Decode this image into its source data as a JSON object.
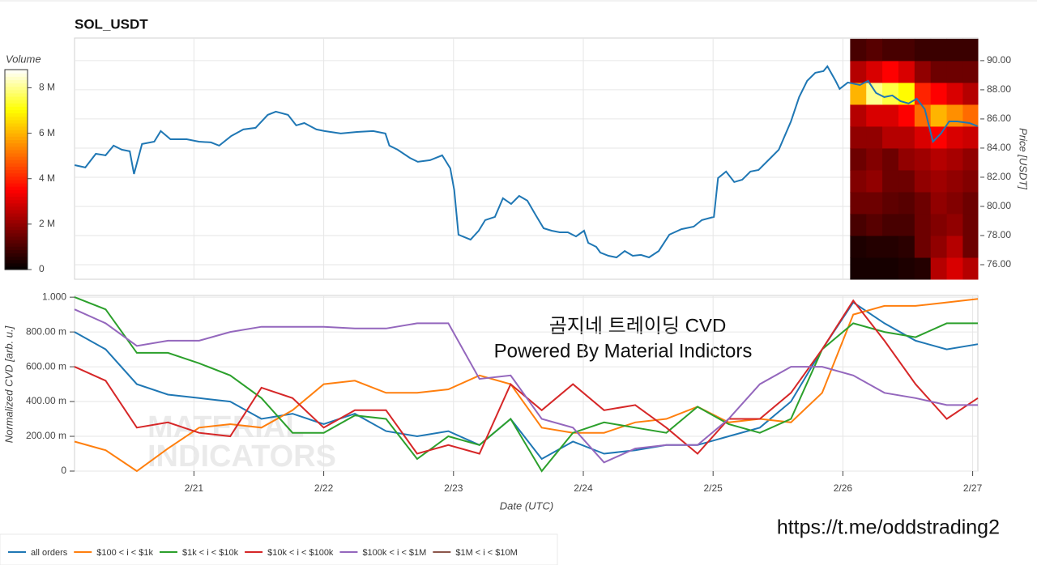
{
  "chart_data": [
    {
      "type": "line",
      "title": "SOL_USDT",
      "ylabel": "Price [USDT]",
      "x": [
        0.081,
        0.163,
        0.244,
        0.319,
        0.381,
        0.444,
        0.506,
        0.538,
        0.6,
        0.694,
        0.744,
        0.819,
        0.944,
        1.038,
        1.131,
        1.194,
        1.288,
        1.381,
        1.475,
        1.569,
        1.631,
        1.725,
        1.788,
        1.85,
        1.944,
        2.006,
        2.131,
        2.256,
        2.381,
        2.475,
        2.506,
        2.569,
        2.663,
        2.725,
        2.819,
        2.913,
        2.975,
        3.006,
        3.038,
        3.131,
        3.194,
        3.244,
        3.319,
        3.381,
        3.444,
        3.506,
        3.569,
        3.631,
        3.694,
        3.756,
        3.819,
        3.881,
        3.944,
        4.006,
        4.038,
        4.1,
        4.131,
        4.194,
        4.256,
        4.319,
        4.381,
        4.444,
        4.506,
        4.581,
        4.663,
        4.756,
        4.85,
        4.913,
        5.006,
        5.038,
        5.1,
        5.163,
        5.225,
        5.288,
        5.35,
        5.444,
        5.506,
        5.6,
        5.663,
        5.725,
        5.788,
        5.85,
        5.881,
        5.944,
        5.975,
        6.038,
        6.131,
        6.194,
        6.256,
        6.319,
        6.381,
        6.444,
        6.506,
        6.569,
        6.631,
        6.694,
        6.756,
        6.819,
        6.881,
        6.975,
        7.038
      ],
      "series": [
        {
          "color": "#1f77b4",
          "values": [
            82.83,
            82.67,
            83.61,
            83.5,
            84.17,
            83.89,
            83.78,
            82.22,
            84.28,
            84.44,
            85.17,
            84.61,
            84.61,
            84.44,
            84.39,
            84.17,
            84.83,
            85.28,
            85.39,
            86.28,
            86.5,
            86.28,
            85.56,
            85.72,
            85.28,
            85.17,
            85.0,
            85.11,
            85.17,
            85.0,
            84.17,
            83.89,
            83.33,
            83.06,
            83.17,
            83.5,
            82.61,
            81.11,
            78.06,
            77.72,
            78.33,
            79.06,
            79.28,
            80.56,
            80.17,
            80.72,
            80.39,
            79.44,
            78.5,
            78.33,
            78.22,
            78.22,
            77.94,
            78.33,
            77.5,
            77.22,
            76.83,
            76.61,
            76.5,
            76.94,
            76.61,
            76.67,
            76.5,
            76.94,
            78.06,
            78.44,
            78.61,
            79.06,
            79.28,
            81.94,
            82.39,
            81.67,
            81.83,
            82.39,
            82.5,
            83.33,
            83.89,
            85.83,
            87.5,
            88.61,
            89.17,
            89.28,
            89.61,
            88.61,
            88.06,
            88.5,
            88.33,
            88.61,
            87.78,
            87.5,
            87.61,
            87.22,
            87.06,
            87.39,
            86.67,
            84.44,
            85.0,
            85.83,
            85.83,
            85.72,
            85.5
          ]
        }
      ],
      "xlim": [
        0.08,
        7.04
      ],
      "ylim": [
        75,
        91.55
      ],
      "yticks": [
        {
          "value": 76,
          "label": "76.00"
        },
        {
          "value": 78,
          "label": "78.00"
        },
        {
          "value": 80,
          "label": "80.00"
        },
        {
          "value": 82,
          "label": "82.00"
        },
        {
          "value": 84,
          "label": "84.00"
        },
        {
          "value": 86,
          "label": "86.00"
        },
        {
          "value": 88,
          "label": "88.00"
        },
        {
          "value": 90,
          "label": "90.00"
        }
      ],
      "heatmap": {
        "label": "Volume",
        "x_edges": [
          6.056,
          6.18,
          6.304,
          6.428,
          6.552,
          6.676,
          6.8,
          6.924,
          7.048
        ],
        "y_edges": [
          75,
          76.5,
          78,
          79.5,
          81,
          82.5,
          84,
          85.5,
          87,
          88.5,
          90,
          91.5
        ],
        "values": [
          [
            0.3,
            0.3,
            0.3,
            0.4,
            0.5,
            2.5,
            3,
            2.5
          ],
          [
            0.4,
            0.5,
            0.5,
            0.6,
            1.5,
            2,
            2.5,
            1.5
          ],
          [
            1,
            1.2,
            1,
            1,
            1.5,
            1.8,
            2,
            1.5
          ],
          [
            1.5,
            1.5,
            1.3,
            1.2,
            1.5,
            2,
            1.8,
            1.5
          ],
          [
            1.8,
            2,
            1.5,
            1.5,
            2,
            2.2,
            2,
            1.8
          ],
          [
            1.5,
            1.8,
            1.5,
            2,
            2.2,
            2.5,
            2.3,
            2
          ],
          [
            2,
            2,
            2.5,
            2.5,
            3,
            3.5,
            3,
            2.8
          ],
          [
            2.5,
            3,
            3,
            3.5,
            5,
            6,
            5.5,
            5
          ],
          [
            6,
            8,
            7.5,
            7,
            4,
            3.5,
            3,
            2.5
          ],
          [
            2.5,
            3,
            3.5,
            3,
            2,
            1.5,
            1.5,
            1.5
          ],
          [
            1,
            1.2,
            1,
            1,
            0.8,
            0.8,
            0.8,
            0.8
          ]
        ],
        "clim": [
          0,
          8.8
        ],
        "cticks": [
          0,
          {
            "value": 2,
            "label": "2 M"
          },
          {
            "value": 4,
            "label": "4 M"
          },
          {
            "value": 6,
            "label": "6 M"
          },
          {
            "value": 8,
            "label": "8 M"
          }
        ]
      }
    },
    {
      "type": "line",
      "ylabel": "Normalized CVD [arb. u.]",
      "xlabel": "Date (UTC)",
      "annotation": [
        "곰지네 트레이딩 CVD",
        "Powered By Material Indictors"
      ],
      "x": [
        0.08,
        0.32,
        0.56,
        0.8,
        1.04,
        1.28,
        1.52,
        1.76,
        2.0,
        2.24,
        2.48,
        2.72,
        2.96,
        3.2,
        3.44,
        3.68,
        3.92,
        4.16,
        4.4,
        4.64,
        4.88,
        5.12,
        5.36,
        5.6,
        5.84,
        6.08,
        6.32,
        6.56,
        6.8,
        7.04
      ],
      "series": [
        {
          "name": "all orders",
          "color": "#1f77b4",
          "values": [
            0.8,
            0.7,
            0.5,
            0.44,
            0.42,
            0.4,
            0.3,
            0.33,
            0.27,
            0.33,
            0.23,
            0.2,
            0.23,
            0.15,
            0.3,
            0.07,
            0.17,
            0.1,
            0.12,
            0.15,
            0.15,
            0.2,
            0.25,
            0.4,
            0.7,
            0.97,
            0.85,
            0.75,
            0.7,
            0.73
          ]
        },
        {
          "name": "$100 < i < $1k",
          "color": "#ff7f0e",
          "values": [
            0.17,
            0.12,
            0.0,
            0.13,
            0.25,
            0.27,
            0.25,
            0.35,
            0.5,
            0.52,
            0.45,
            0.45,
            0.47,
            0.55,
            0.5,
            0.25,
            0.22,
            0.22,
            0.28,
            0.3,
            0.37,
            0.28,
            0.3,
            0.28,
            0.45,
            0.9,
            0.95,
            0.95,
            0.97,
            0.99
          ]
        },
        {
          "name": "$1k < i < $10k",
          "color": "#2ca02c",
          "values": [
            1.0,
            0.93,
            0.68,
            0.68,
            0.62,
            0.55,
            0.42,
            0.22,
            0.22,
            0.32,
            0.3,
            0.07,
            0.2,
            0.15,
            0.3,
            0.0,
            0.22,
            0.28,
            0.25,
            0.22,
            0.37,
            0.27,
            0.22,
            0.3,
            0.7,
            0.85,
            0.8,
            0.77,
            0.85,
            0.85
          ]
        },
        {
          "name": "$10k < i < $100k",
          "color": "#d62728",
          "values": [
            0.6,
            0.52,
            0.25,
            0.28,
            0.22,
            0.2,
            0.48,
            0.42,
            0.25,
            0.35,
            0.35,
            0.1,
            0.15,
            0.1,
            0.5,
            0.35,
            0.5,
            0.35,
            0.38,
            0.25,
            0.1,
            0.3,
            0.3,
            0.45,
            0.7,
            0.98,
            0.75,
            0.5,
            0.3,
            0.42
          ]
        },
        {
          "name": "$100k < i < $1M",
          "color": "#9467bd",
          "values": [
            0.93,
            0.85,
            0.72,
            0.75,
            0.75,
            0.8,
            0.83,
            0.83,
            0.83,
            0.82,
            0.82,
            0.85,
            0.85,
            0.53,
            0.55,
            0.3,
            0.25,
            0.05,
            0.13,
            0.15,
            0.15,
            0.3,
            0.5,
            0.6,
            0.6,
            0.55,
            0.45,
            0.42,
            0.38,
            0.38
          ]
        },
        {
          "name": "$1M < i < $10M",
          "color": "#8c564b",
          "values": [
            null,
            null,
            null,
            null,
            null,
            null,
            null,
            null,
            null,
            null,
            null,
            null,
            null,
            null,
            null,
            null,
            null,
            null,
            null,
            null,
            null,
            null,
            null,
            null,
            null,
            null,
            null,
            null,
            null,
            null
          ]
        }
      ],
      "xlim": [
        0.08,
        7.04
      ],
      "ylim": [
        0,
        1.01
      ],
      "xticks": [
        {
          "value": 1,
          "label": "2/21"
        },
        {
          "value": 2,
          "label": "2/22"
        },
        {
          "value": 3,
          "label": "2/23"
        },
        {
          "value": 4,
          "label": "2/24"
        },
        {
          "value": 5,
          "label": "2/25"
        },
        {
          "value": 6,
          "label": "2/26"
        },
        {
          "value": 7,
          "label": "2/27"
        }
      ],
      "yticks": [
        0,
        {
          "value": 0.2,
          "label": "200.00 m"
        },
        {
          "value": 0.4,
          "label": "400.00 m"
        },
        {
          "value": 0.6,
          "label": "600.00 m"
        },
        {
          "value": 0.8,
          "label": "800.00 m"
        },
        {
          "value": 1,
          "label": "1.000"
        }
      ]
    }
  ],
  "watermark": [
    "MATERIAL",
    "INDICATORS"
  ],
  "footer_link": "https://t.me/oddstrading2"
}
